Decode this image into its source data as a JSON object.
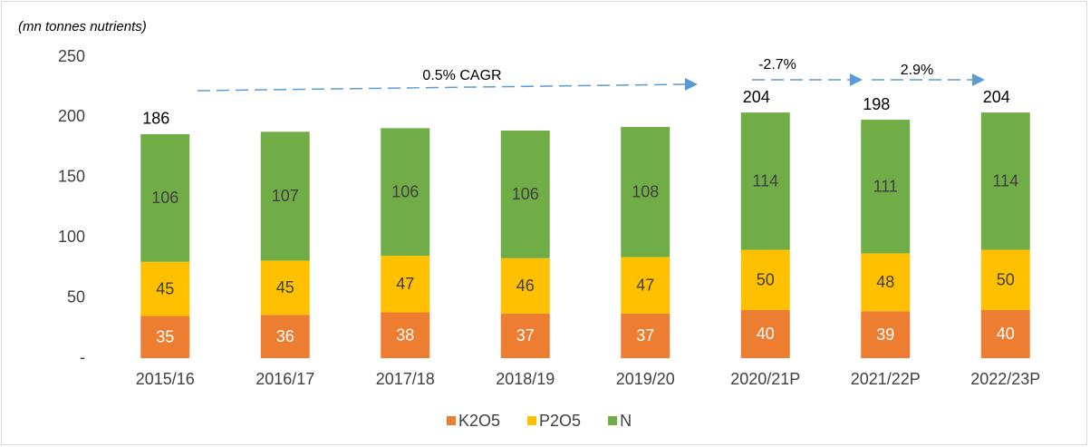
{
  "chart_data": {
    "type": "stacked_bar",
    "y_axis_label": "(mn tonnes nutrients)",
    "categories": [
      "2015/16",
      "2016/17",
      "2017/18",
      "2018/19",
      "2019/20",
      "2020/21P",
      "2021/22P",
      "2022/23P"
    ],
    "series": [
      {
        "name": "K2O5",
        "color": "#ed7d31",
        "values": [
          35,
          36,
          38,
          37,
          37,
          40,
          39,
          40
        ]
      },
      {
        "name": "P2O5",
        "color": "#ffc000",
        "values": [
          45,
          45,
          47,
          46,
          47,
          50,
          48,
          50
        ]
      },
      {
        "name": "N",
        "color": "#70ad47",
        "values": [
          106,
          107,
          106,
          106,
          108,
          114,
          111,
          114
        ]
      }
    ],
    "totals": [
      186,
      null,
      null,
      null,
      null,
      204,
      198,
      204
    ],
    "annotations": [
      "0.5% CAGR",
      "-2.7%",
      "2.9%"
    ],
    "ylim": [
      0,
      250
    ],
    "yticks": [
      {
        "value": 0,
        "label": "-"
      },
      50,
      100,
      150,
      200,
      250
    ],
    "legend": "bottom"
  }
}
